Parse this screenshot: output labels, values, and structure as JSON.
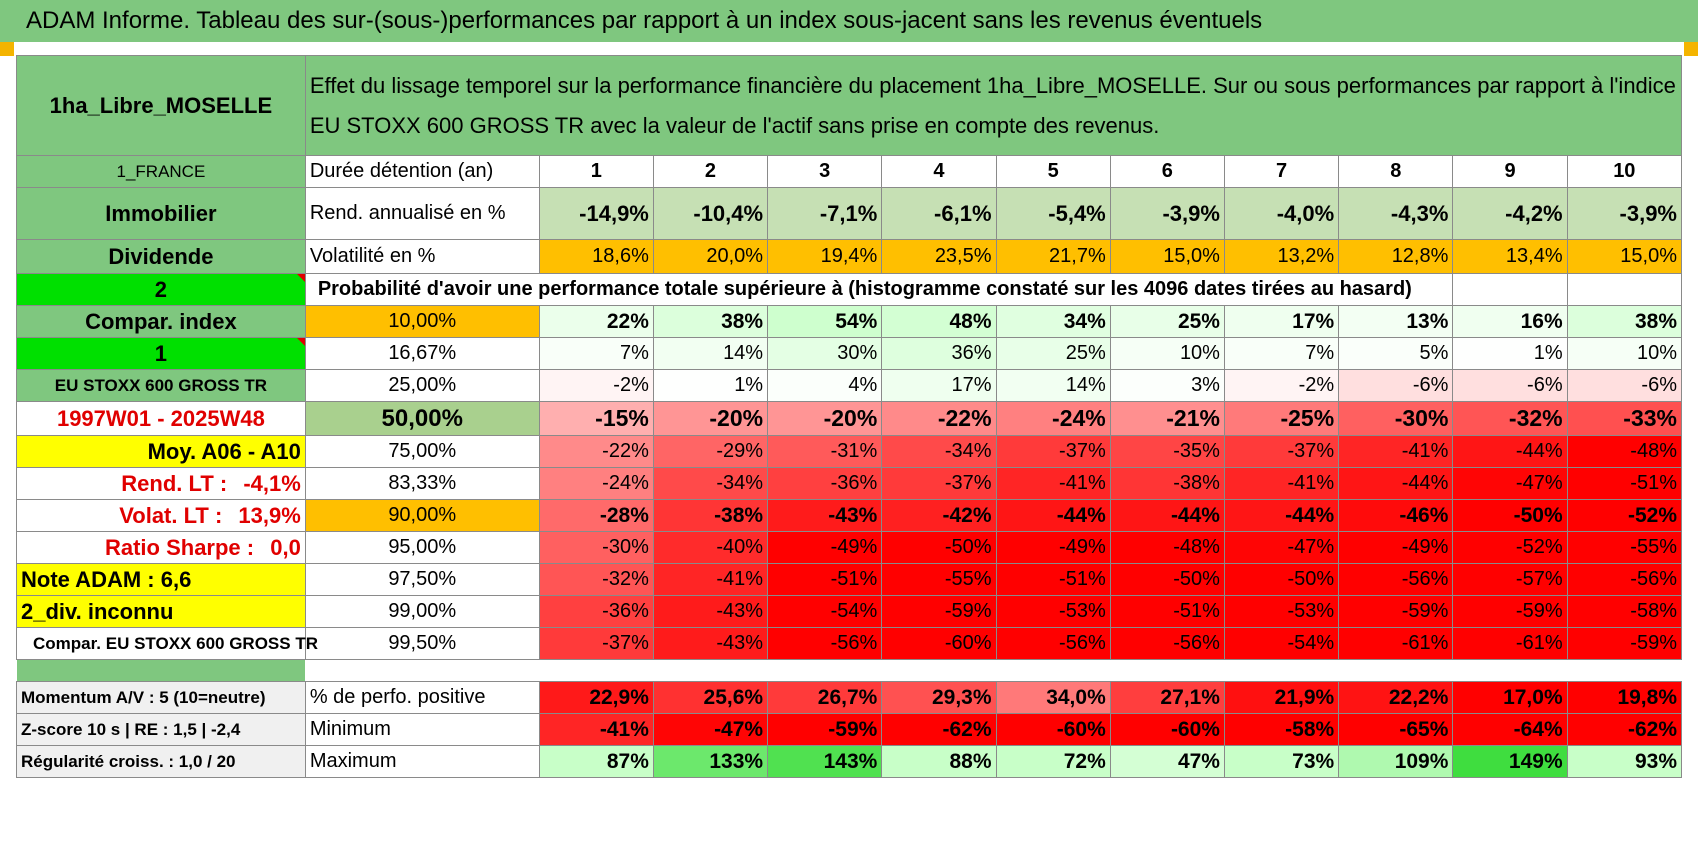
{
  "header": {
    "title": "ADAM Informe. Tableau des sur-(sous-)performances par rapport à un index sous-jacent sans les revenus éventuels"
  },
  "left": {
    "asset": "1ha_Libre_MOSELLE",
    "country": "1_FRANCE",
    "category": "Immobilier",
    "type": "Dividende",
    "n2": "2",
    "compar": "Compar. index",
    "n1": "1",
    "index": "EU STOXX 600 GROSS TR",
    "period": "1997W01 - 2025W48",
    "moy": "Moy. A06 - A10",
    "rendlt_label": "Rend. LT :",
    "rendlt_val": "-4,1%",
    "volat_label": "Volat. LT :",
    "volat_val": "13,9%",
    "sharpe_label": "Ratio Sharpe :",
    "sharpe_val": "0,0",
    "note": "Note ADAM : 6,6",
    "div": "2_div. inconnu",
    "compar2": "Compar. EU STOXX 600 GROSS TR"
  },
  "description": "Effet du lissage temporel sur la performance financière du placement 1ha_Libre_MOSELLE. Sur ou sous performances par rapport à l'indice EU STOXX 600 GROSS TR avec la valeur de l'actif sans prise en compte des revenus.",
  "labels": {
    "duree": "Durée détention (an)",
    "rend": "Rend. annualisé en %",
    "vol": "Volatilité en %",
    "proba": "Probabilité d'avoir une performance totale supérieure à (histogramme constaté sur les 4096 dates tirées au hasard)"
  },
  "years": [
    "1",
    "2",
    "3",
    "4",
    "5",
    "6",
    "7",
    "8",
    "9",
    "10"
  ],
  "rend": [
    "-14,9%",
    "-10,4%",
    "-7,1%",
    "-6,1%",
    "-5,4%",
    "-3,9%",
    "-4,0%",
    "-4,3%",
    "-4,2%",
    "-3,9%"
  ],
  "vol": [
    "18,6%",
    "20,0%",
    "19,4%",
    "23,5%",
    "21,7%",
    "15,0%",
    "13,2%",
    "12,8%",
    "13,4%",
    "15,0%"
  ],
  "percentiles": [
    {
      "label": "10,00%",
      "values": [
        "22%",
        "38%",
        "54%",
        "48%",
        "34%",
        "25%",
        "17%",
        "13%",
        "16%",
        "38%"
      ]
    },
    {
      "label": "16,67%",
      "values": [
        "7%",
        "14%",
        "30%",
        "36%",
        "25%",
        "10%",
        "7%",
        "5%",
        "1%",
        "10%"
      ]
    },
    {
      "label": "25,00%",
      "values": [
        "-2%",
        "1%",
        "4%",
        "17%",
        "14%",
        "3%",
        "-2%",
        "-6%",
        "-6%",
        "-6%"
      ]
    },
    {
      "label": "50,00%",
      "values": [
        "-15%",
        "-20%",
        "-20%",
        "-22%",
        "-24%",
        "-21%",
        "-25%",
        "-30%",
        "-32%",
        "-33%"
      ]
    },
    {
      "label": "75,00%",
      "values": [
        "-22%",
        "-29%",
        "-31%",
        "-34%",
        "-37%",
        "-35%",
        "-37%",
        "-41%",
        "-44%",
        "-48%"
      ]
    },
    {
      "label": "83,33%",
      "values": [
        "-24%",
        "-34%",
        "-36%",
        "-37%",
        "-41%",
        "-38%",
        "-41%",
        "-44%",
        "-47%",
        "-51%"
      ]
    },
    {
      "label": "90,00%",
      "values": [
        "-28%",
        "-38%",
        "-43%",
        "-42%",
        "-44%",
        "-44%",
        "-44%",
        "-46%",
        "-50%",
        "-52%"
      ]
    },
    {
      "label": "95,00%",
      "values": [
        "-30%",
        "-40%",
        "-49%",
        "-50%",
        "-49%",
        "-48%",
        "-47%",
        "-49%",
        "-52%",
        "-55%"
      ]
    },
    {
      "label": "97,50%",
      "values": [
        "-32%",
        "-41%",
        "-51%",
        "-55%",
        "-51%",
        "-50%",
        "-50%",
        "-56%",
        "-57%",
        "-56%"
      ]
    },
    {
      "label": "99,00%",
      "values": [
        "-36%",
        "-43%",
        "-54%",
        "-59%",
        "-53%",
        "-51%",
        "-53%",
        "-59%",
        "-59%",
        "-58%"
      ]
    },
    {
      "label": "99,50%",
      "values": [
        "-37%",
        "-43%",
        "-56%",
        "-60%",
        "-56%",
        "-56%",
        "-54%",
        "-61%",
        "-61%",
        "-59%"
      ]
    }
  ],
  "stats": [
    {
      "left": "Momentum A/V : 5 (10=neutre)",
      "label": "% de perfo. positive",
      "values": [
        "22,9%",
        "25,6%",
        "26,7%",
        "29,3%",
        "34,0%",
        "27,1%",
        "21,9%",
        "22,2%",
        "17,0%",
        "19,8%"
      ]
    },
    {
      "left": "Z-score 10 s | RE : 1,5 | -2,4",
      "label": "Minimum",
      "values": [
        "-41%",
        "-47%",
        "-59%",
        "-62%",
        "-60%",
        "-60%",
        "-58%",
        "-65%",
        "-64%",
        "-62%"
      ]
    },
    {
      "left": "Régularité croiss. : 1,0 / 20",
      "label": "Maximum",
      "values": [
        "87%",
        "133%",
        "143%",
        "88%",
        "72%",
        "47%",
        "73%",
        "109%",
        "149%",
        "93%"
      ]
    }
  ],
  "colors": {
    "green_header": "#7fc77f",
    "bright_green": "#00e000",
    "orange": "#ffbf00",
    "yellow": "#ffff00",
    "red_text": "#e00000"
  }
}
